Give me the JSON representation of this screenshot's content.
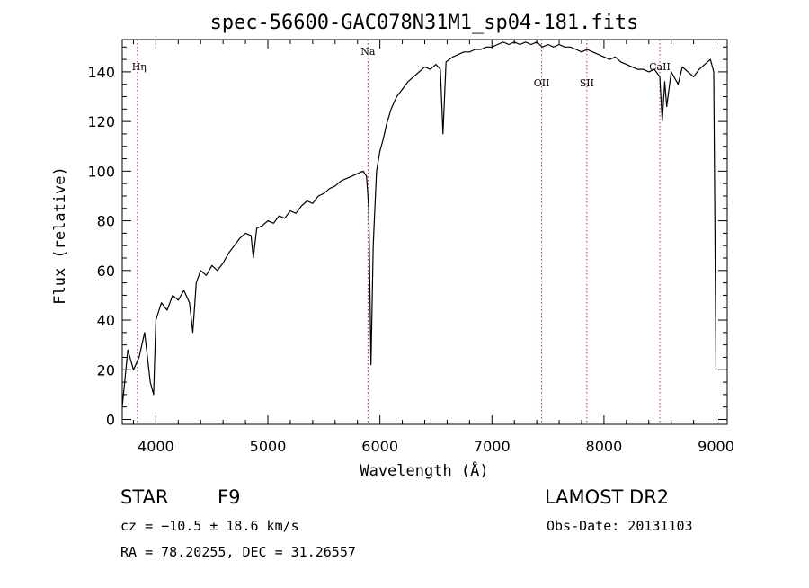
{
  "chart_data": {
    "type": "line",
    "title": "spec-56600-GAC078N31M1_sp04-181.fits",
    "xlabel": "Wavelength (Å)",
    "ylabel": "Flux (relative)",
    "xlim": [
      3700,
      9100
    ],
    "ylim": [
      -2,
      153
    ],
    "x_ticks": [
      4000,
      5000,
      6000,
      7000,
      8000,
      9000
    ],
    "x_tick_labels": [
      "4000",
      "5000",
      "6000",
      "7000",
      "8000",
      "9000"
    ],
    "y_ticks": [
      0,
      20,
      40,
      60,
      80,
      100,
      120,
      140
    ],
    "y_tick_labels": [
      "0",
      "20",
      "40",
      "60",
      "80",
      "100",
      "120",
      "140"
    ],
    "grid": false,
    "series": [
      {
        "color": "#000000",
        "x": [
          3700,
          3750,
          3800,
          3850,
          3900,
          3950,
          3980,
          4000,
          4050,
          4100,
          4150,
          4200,
          4250,
          4300,
          4330,
          4360,
          4400,
          4450,
          4500,
          4550,
          4600,
          4650,
          4700,
          4750,
          4800,
          4850,
          4870,
          4900,
          4950,
          5000,
          5050,
          5100,
          5150,
          5200,
          5250,
          5300,
          5350,
          5400,
          5450,
          5500,
          5550,
          5600,
          5650,
          5700,
          5750,
          5800,
          5850,
          5880,
          5890,
          5900,
          5910,
          5920,
          5930,
          5940,
          5950,
          5970,
          6000,
          6030,
          6060,
          6100,
          6150,
          6200,
          6250,
          6300,
          6350,
          6400,
          6450,
          6500,
          6540,
          6563,
          6590,
          6650,
          6700,
          6750,
          6800,
          6850,
          6900,
          6950,
          7000,
          7050,
          7100,
          7150,
          7200,
          7250,
          7300,
          7350,
          7400,
          7450,
          7500,
          7550,
          7600,
          7650,
          7700,
          7750,
          7800,
          7850,
          7900,
          7950,
          8000,
          8050,
          8100,
          8150,
          8200,
          8250,
          8300,
          8350,
          8400,
          8450,
          8498,
          8520,
          8542,
          8560,
          8600,
          8662,
          8700,
          8750,
          8800,
          8850,
          8900,
          8950,
          8980,
          9000
        ],
        "values": [
          5,
          28,
          20,
          25,
          35,
          15,
          10,
          40,
          47,
          44,
          50,
          48,
          52,
          47,
          35,
          55,
          60,
          58,
          62,
          60,
          63,
          67,
          70,
          73,
          75,
          74,
          65,
          77,
          78,
          80,
          79,
          82,
          81,
          84,
          83,
          86,
          88,
          87,
          90,
          91,
          93,
          94,
          96,
          97,
          98,
          99,
          100,
          98,
          92,
          85,
          55,
          22,
          45,
          70,
          80,
          100,
          108,
          113,
          119,
          125,
          130,
          133,
          136,
          138,
          140,
          142,
          141,
          143,
          141,
          115,
          144,
          146,
          147,
          148,
          148,
          149,
          149,
          150,
          150,
          151,
          152,
          151,
          152,
          151,
          152,
          151,
          152,
          150,
          151,
          150,
          151,
          150,
          150,
          149,
          148,
          149,
          148,
          147,
          146,
          145,
          146,
          144,
          143,
          142,
          141,
          141,
          140,
          141,
          138,
          120,
          136,
          126,
          140,
          135,
          142,
          140,
          138,
          141,
          143,
          145,
          140,
          20
        ]
      }
    ],
    "line_markers": [
      {
        "label": "Hη",
        "x": 3835
      },
      {
        "label": "Na",
        "x": 5893
      },
      {
        "label": "OII",
        "x": 7444
      },
      {
        "label": "SII",
        "x": 7847
      },
      {
        "label": "CaII",
        "x": 8498
      }
    ],
    "marker_color": "#a52a2a"
  },
  "info": {
    "object_class": "STAR",
    "subclass": "F9",
    "survey": "LAMOST DR2",
    "cz": "cz = −10.5 ± 18.6 km/s",
    "obs_date": "Obs-Date: 20131103",
    "radec": "RA =  78.20255, DEC =  31.26557"
  }
}
